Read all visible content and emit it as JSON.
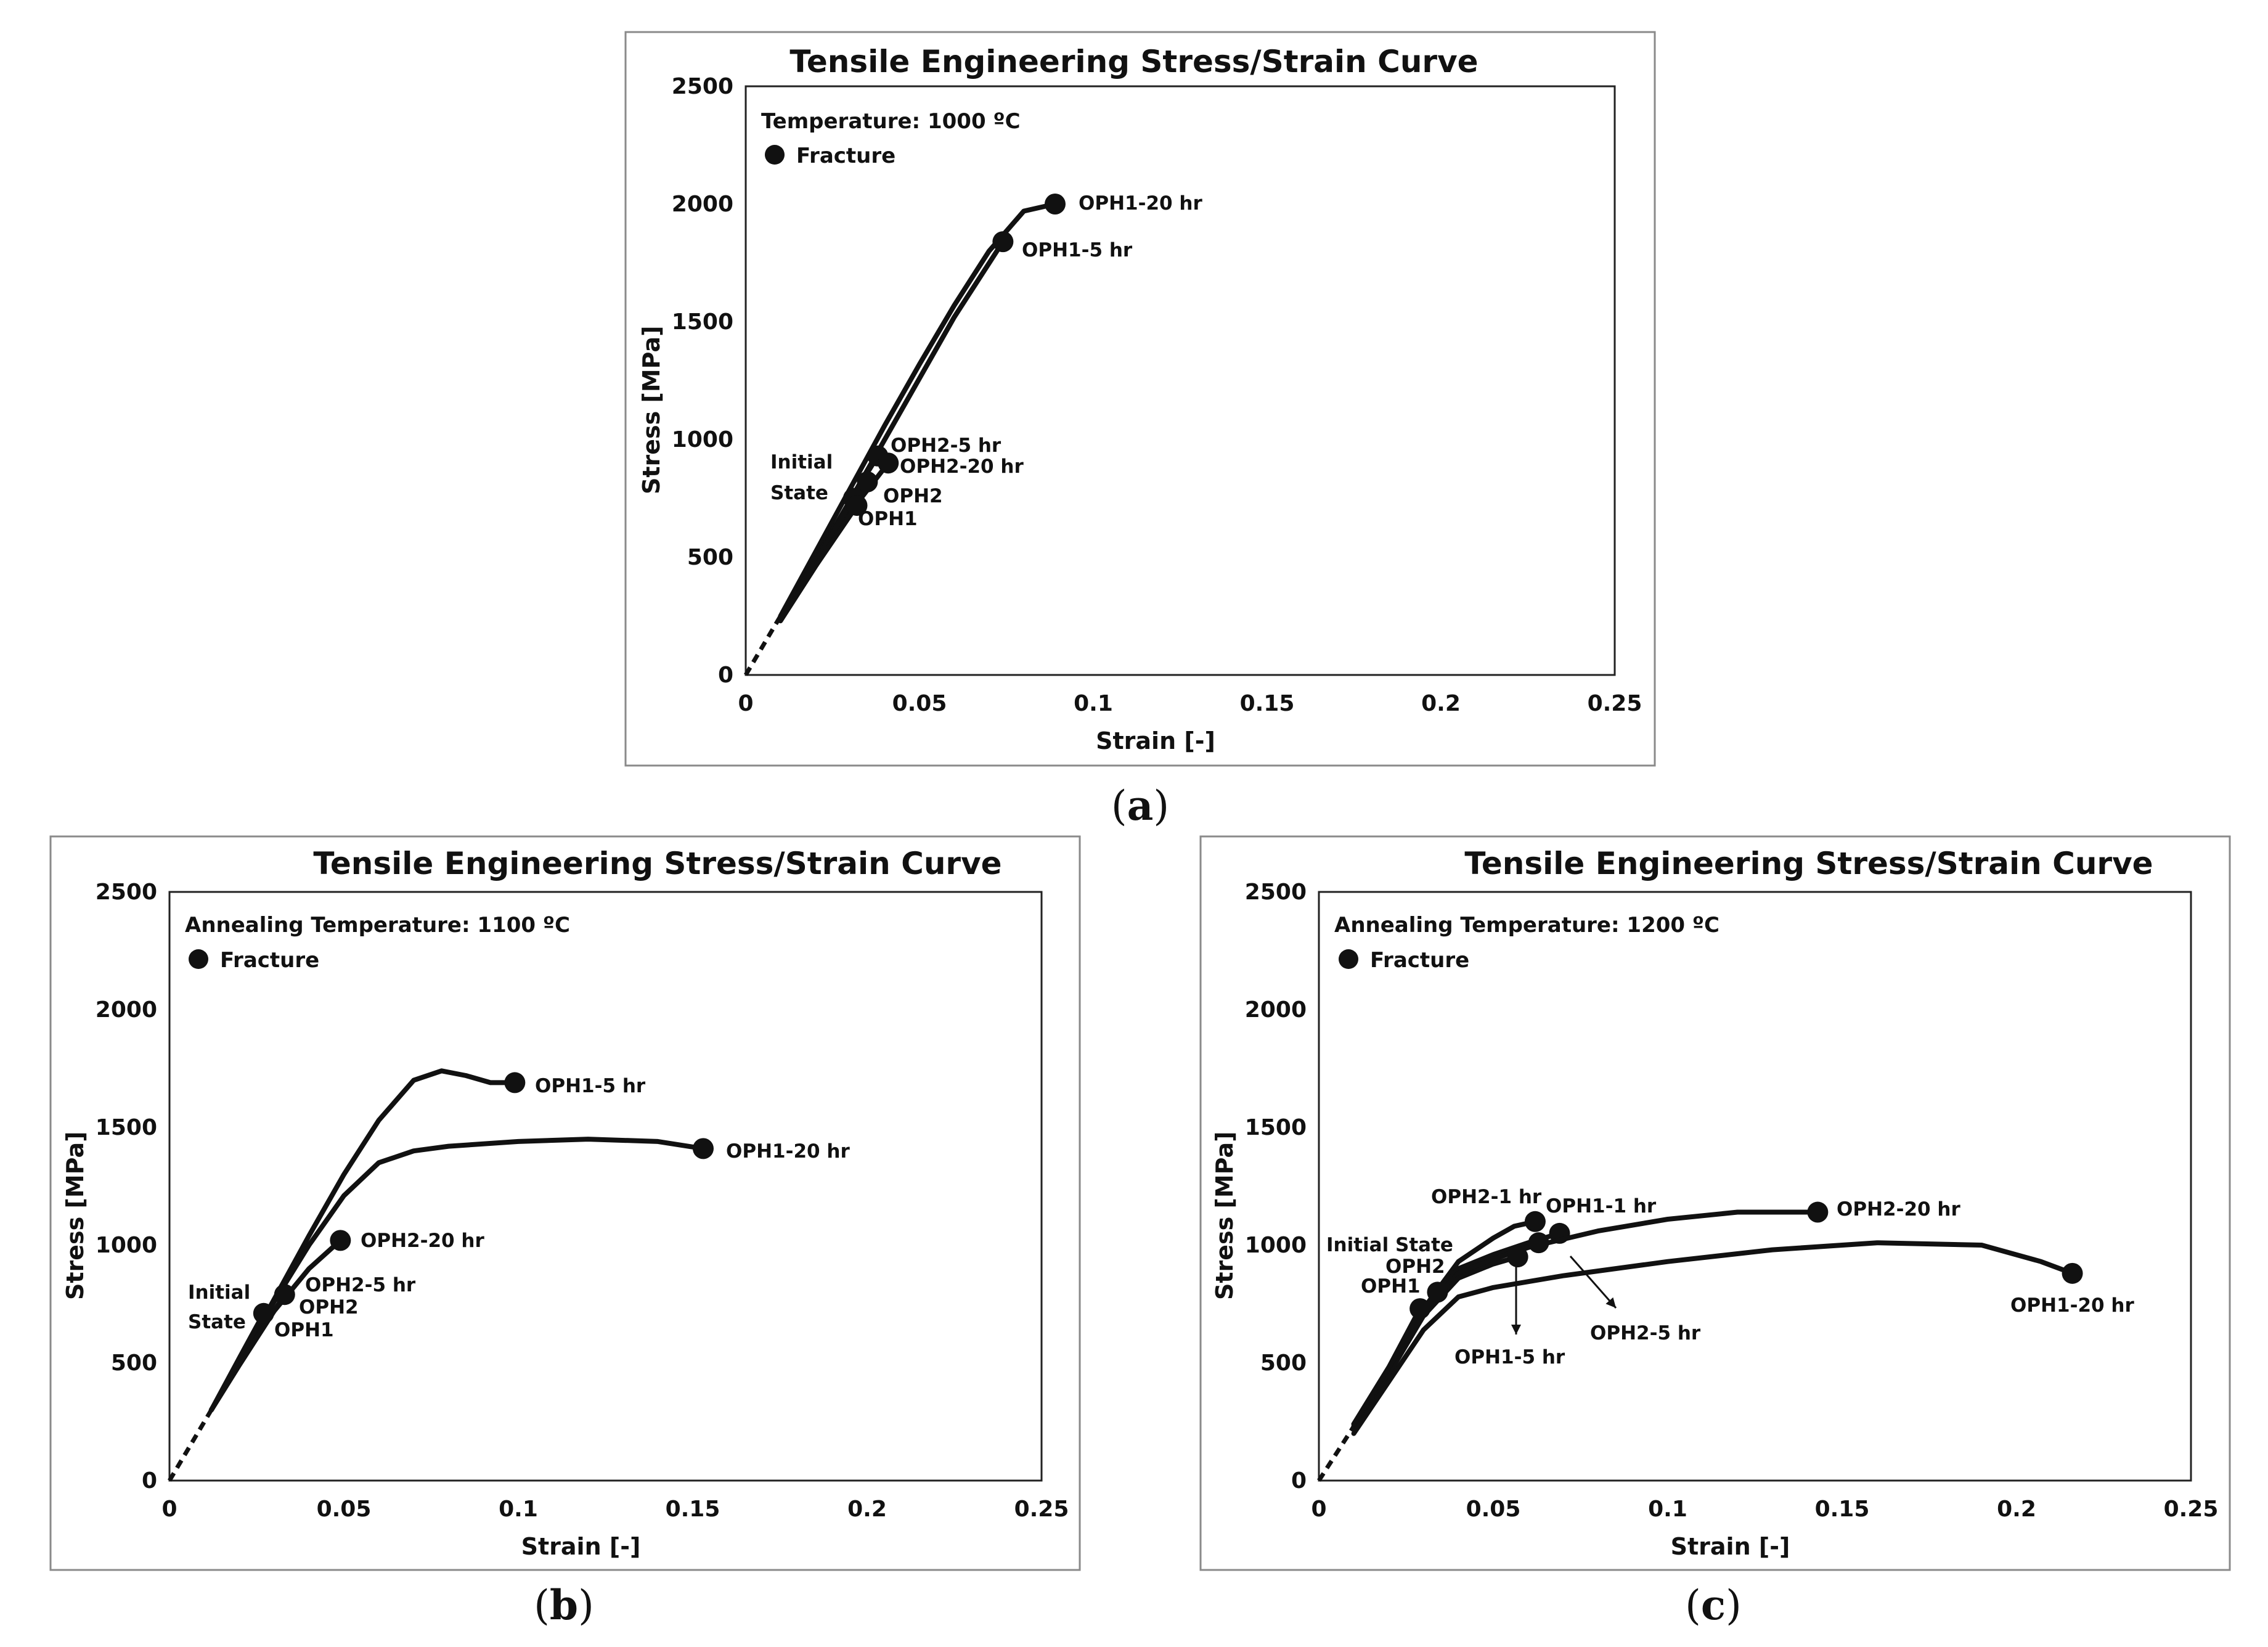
{
  "colors": {
    "ink": "#111111",
    "frame": "#8a8a8a",
    "background": "#ffffff"
  },
  "chart_data": [
    {
      "type": "line",
      "panel": "a",
      "caption": "a",
      "title": "Tensile Engineering Stress/Strain Curve",
      "xlabel": "Strain [-]",
      "ylabel": "Stress [MPa]",
      "xlim": [
        0,
        0.25
      ],
      "ylim": [
        0,
        2500
      ],
      "xticks": [
        0,
        0.05,
        0.1,
        0.15,
        0.2,
        0.25
      ],
      "xtick_labels": [
        "0",
        "0.05",
        "0.1",
        "0.15",
        "0.2",
        "0.25"
      ],
      "yticks": [
        0,
        500,
        1000,
        1500,
        2000,
        2500
      ],
      "ytick_labels": [
        "0",
        "500",
        "1000",
        "1500",
        "2000",
        "2500"
      ],
      "condition_text": "Temperature: 1000 ºC",
      "legend_marker_text": "Fracture",
      "grid": false,
      "series": [
        {
          "name": "OPH1-20 hr",
          "x": [
            0.01,
            0.02,
            0.03,
            0.04,
            0.05,
            0.06,
            0.07,
            0.08,
            0.089
          ],
          "y": [
            250,
            520,
            790,
            1060,
            1320,
            1570,
            1800,
            1970,
            2000
          ],
          "fracture": [
            0.089,
            2000
          ]
        },
        {
          "name": "OPH1-5 hr",
          "x": [
            0.01,
            0.02,
            0.03,
            0.04,
            0.05,
            0.06,
            0.074
          ],
          "y": [
            240,
            480,
            740,
            1000,
            1260,
            1520,
            1840
          ],
          "fracture": [
            0.074,
            1840
          ]
        },
        {
          "name": "OPH2-5 hr",
          "x": [
            0.01,
            0.02,
            0.03,
            0.038
          ],
          "y": [
            240,
            490,
            740,
            930
          ],
          "fracture": [
            0.038,
            930
          ]
        },
        {
          "name": "OPH2-20 hr",
          "x": [
            0.01,
            0.02,
            0.03,
            0.041
          ],
          "y": [
            230,
            460,
            690,
            900
          ],
          "fracture": [
            0.041,
            900
          ]
        },
        {
          "name": "OPH2",
          "x": [
            0.01,
            0.02,
            0.035
          ],
          "y": [
            240,
            480,
            820
          ],
          "fracture": [
            0.035,
            820
          ]
        },
        {
          "name": "Initial State",
          "x": [
            0.01,
            0.02,
            0.031
          ],
          "y": [
            240,
            480,
            750
          ],
          "fracture": [
            0.031,
            750
          ]
        },
        {
          "name": "OPH1",
          "x": [
            0.01,
            0.02,
            0.032
          ],
          "y": [
            230,
            460,
            720
          ],
          "fracture": [
            0.032,
            720
          ]
        }
      ],
      "annotations": [
        {
          "text": "OPH1-20 hr"
        },
        {
          "text": "OPH1-5 hr"
        },
        {
          "text": "OPH2-5 hr"
        },
        {
          "text": "OPH2-20 hr"
        },
        {
          "text": "OPH2"
        },
        {
          "text": "OPH1"
        },
        {
          "text": "Initial"
        },
        {
          "text": "State"
        }
      ]
    },
    {
      "type": "line",
      "panel": "b",
      "caption": "b",
      "title": "Tensile Engineering Stress/Strain Curve",
      "xlabel": "Strain [-]",
      "ylabel": "Stress [MPa]",
      "xlim": [
        0,
        0.25
      ],
      "ylim": [
        0,
        2500
      ],
      "xticks": [
        0,
        0.05,
        0.1,
        0.15,
        0.2,
        0.25
      ],
      "xtick_labels": [
        "0",
        "0.05",
        "0.1",
        "0.15",
        "0.2",
        "0.25"
      ],
      "yticks": [
        0,
        500,
        1000,
        1500,
        2000,
        2500
      ],
      "ytick_labels": [
        "0",
        "500",
        "1000",
        "1500",
        "2000",
        "2500"
      ],
      "condition_text": "Annealing Temperature: 1100 ºC",
      "legend_marker_text": "Fracture",
      "grid": false,
      "series": [
        {
          "name": "OPH1-5 hr",
          "x": [
            0.012,
            0.02,
            0.03,
            0.04,
            0.05,
            0.06,
            0.07,
            0.078,
            0.085,
            0.092,
            0.099
          ],
          "y": [
            300,
            500,
            770,
            1040,
            1300,
            1530,
            1700,
            1740,
            1720,
            1690,
            1690
          ],
          "fracture": [
            0.099,
            1690
          ]
        },
        {
          "name": "OPH1-20 hr",
          "x": [
            0.012,
            0.02,
            0.03,
            0.04,
            0.05,
            0.06,
            0.07,
            0.08,
            0.1,
            0.12,
            0.14,
            0.153
          ],
          "y": [
            300,
            500,
            760,
            1000,
            1210,
            1350,
            1400,
            1420,
            1440,
            1450,
            1440,
            1410
          ],
          "fracture": [
            0.153,
            1410
          ]
        },
        {
          "name": "OPH2-20 hr",
          "x": [
            0.012,
            0.02,
            0.03,
            0.04,
            0.049
          ],
          "y": [
            300,
            490,
            720,
            900,
            1020
          ],
          "fracture": [
            0.049,
            1020
          ]
        },
        {
          "name": "OPH2-5 hr",
          "x": [
            0.012,
            0.02,
            0.033
          ],
          "y": [
            300,
            490,
            790
          ],
          "fracture": [
            0.033,
            790
          ]
        },
        {
          "name": "Initial State",
          "x": [
            0.012,
            0.02,
            0.027
          ],
          "y": [
            300,
            520,
            710
          ],
          "fracture": [
            0.027,
            710
          ]
        }
      ],
      "annotations": [
        {
          "text": "OPH1-5 hr"
        },
        {
          "text": "OPH1-20 hr"
        },
        {
          "text": "OPH2-20 hr"
        },
        {
          "text": "OPH2-5 hr"
        },
        {
          "text": "OPH2"
        },
        {
          "text": "OPH1"
        },
        {
          "text": "Initial"
        },
        {
          "text": "State"
        }
      ]
    },
    {
      "type": "line",
      "panel": "c",
      "caption": "c",
      "title": "Tensile Engineering Stress/Strain Curve",
      "xlabel": "Strain [-]",
      "ylabel": "Stress [MPa]",
      "xlim": [
        0,
        0.25
      ],
      "ylim": [
        0,
        2500
      ],
      "xticks": [
        0,
        0.05,
        0.1,
        0.15,
        0.2,
        0.25
      ],
      "xtick_labels": [
        "0",
        "0.05",
        "0.1",
        "0.15",
        "0.2",
        "0.25"
      ],
      "yticks": [
        0,
        500,
        1000,
        1500,
        2000,
        2500
      ],
      "ytick_labels": [
        "0",
        "500",
        "1000",
        "1500",
        "2000",
        "2500"
      ],
      "condition_text": "Annealing Temperature: 1200 ºC",
      "legend_marker_text": "Fracture",
      "grid": false,
      "series": [
        {
          "name": "OPH2-1 hr",
          "x": [
            0.01,
            0.02,
            0.03,
            0.04,
            0.05,
            0.056,
            0.062
          ],
          "y": [
            230,
            470,
            730,
            930,
            1030,
            1080,
            1100
          ],
          "fracture": [
            0.062,
            1100
          ]
        },
        {
          "name": "OPH1-1 hr",
          "x": [
            0.01,
            0.02,
            0.03,
            0.04,
            0.05,
            0.06,
            0.069
          ],
          "y": [
            230,
            460,
            720,
            900,
            960,
            1010,
            1050
          ],
          "fracture": [
            0.069,
            1050
          ]
        },
        {
          "name": "OPH2-20 hr",
          "x": [
            0.01,
            0.02,
            0.03,
            0.04,
            0.05,
            0.06,
            0.08,
            0.1,
            0.12,
            0.143
          ],
          "y": [
            230,
            460,
            720,
            880,
            940,
            990,
            1060,
            1110,
            1140,
            1140
          ],
          "fracture": [
            0.143,
            1140
          ]
        },
        {
          "name": "OPH2-5 hr",
          "x": [
            0.01,
            0.02,
            0.03,
            0.04,
            0.05,
            0.063
          ],
          "y": [
            230,
            460,
            720,
            880,
            940,
            1010
          ],
          "fracture": [
            0.063,
            1010
          ]
        },
        {
          "name": "OPH1-5 hr",
          "x": [
            0.01,
            0.02,
            0.03,
            0.04,
            0.05,
            0.057
          ],
          "y": [
            220,
            450,
            700,
            860,
            920,
            950
          ],
          "fracture": [
            0.057,
            950
          ]
        },
        {
          "name": "OPH1-20 hr",
          "x": [
            0.01,
            0.02,
            0.03,
            0.04,
            0.05,
            0.07,
            0.1,
            0.13,
            0.16,
            0.19,
            0.207,
            0.216
          ],
          "y": [
            200,
            420,
            640,
            780,
            820,
            870,
            930,
            980,
            1010,
            1000,
            930,
            880
          ],
          "fracture": [
            0.216,
            880
          ]
        },
        {
          "name": "OPH2",
          "x": [
            0.01,
            0.02,
            0.034
          ],
          "y": [
            240,
            480,
            800
          ],
          "fracture": [
            0.034,
            800
          ]
        },
        {
          "name": "Initial State",
          "x": [
            0.01,
            0.02,
            0.029
          ],
          "y": [
            240,
            480,
            730
          ],
          "fracture": [
            0.029,
            730
          ]
        }
      ],
      "annotations": [
        {
          "text": "OPH2-1 hr"
        },
        {
          "text": "OPH1-1 hr"
        },
        {
          "text": "OPH2-20 hr"
        },
        {
          "text": "Initial State"
        },
        {
          "text": "OPH2"
        },
        {
          "text": "OPH1"
        },
        {
          "text": "OPH2-5 hr"
        },
        {
          "text": "OPH1-5 hr"
        },
        {
          "text": "OPH1-20 hr"
        }
      ]
    }
  ]
}
